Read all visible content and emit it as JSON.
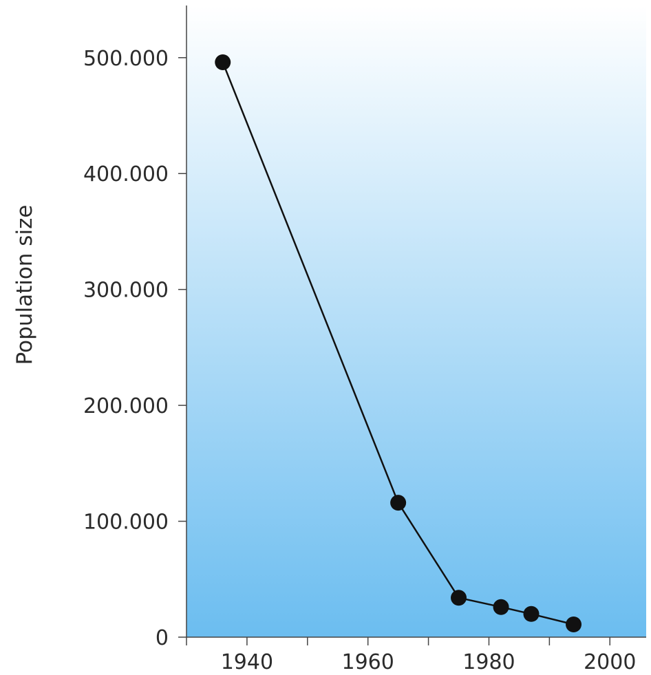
{
  "chart_data": {
    "type": "line",
    "title": "",
    "xlabel": "",
    "ylabel": "Population size",
    "xlim": [
      1930,
      2006
    ],
    "ylim": [
      0,
      545000
    ],
    "x_ticks": [
      1940,
      1960,
      1980,
      2000
    ],
    "x_minor_ticks": [
      1930,
      1950,
      1970,
      1990
    ],
    "y_ticks": [
      0,
      100000,
      200000,
      300000,
      400000,
      500000
    ],
    "y_tick_labels": [
      "0",
      "100.000",
      "200.000",
      "300.000",
      "400.000",
      "500.000"
    ],
    "grid": false,
    "legend": "none",
    "background_gradient": [
      "#ffffff",
      "#6bbdf0"
    ],
    "series": [
      {
        "x": [
          1936,
          1965,
          1975,
          1982,
          1987,
          1994
        ],
        "y": [
          496000,
          116000,
          34000,
          26000,
          20000,
          11000
        ],
        "color": "#111111",
        "marker": "circle"
      }
    ]
  }
}
